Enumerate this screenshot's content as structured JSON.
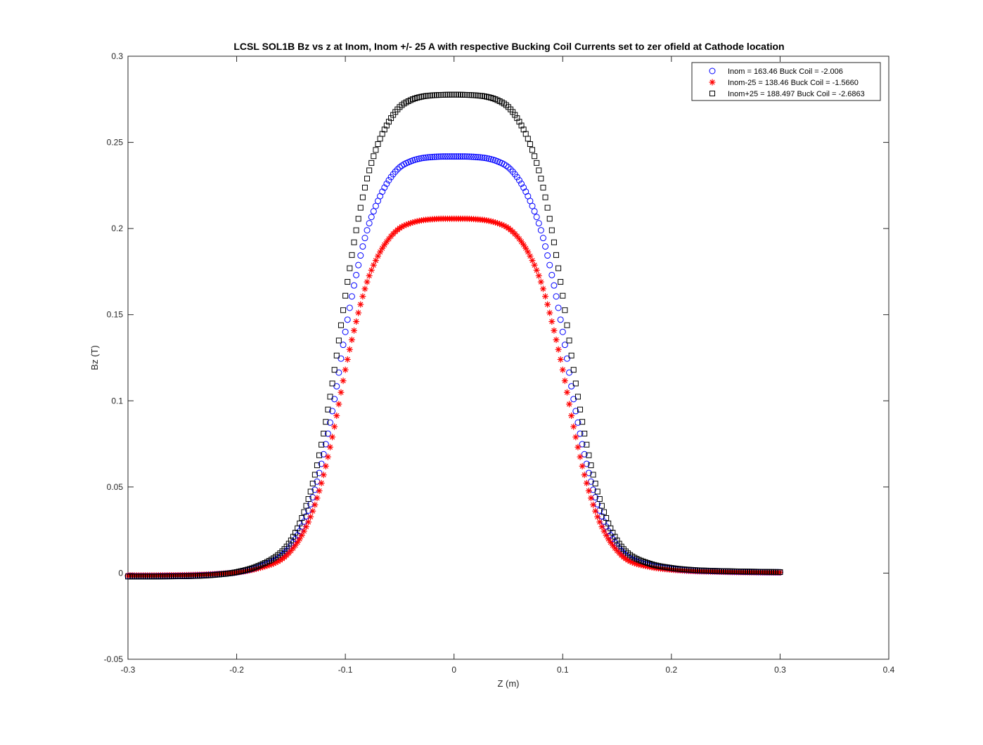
{
  "chart_data": {
    "type": "scatter",
    "title": "LCSL SOL1B Bz vs z at Inom, Inom +/- 25 A with respective Bucking Coil Currents set to zer ofield at Cathode location",
    "xlabel": "Z (m)",
    "ylabel": "Bz (T)",
    "xlim": [
      -0.3,
      0.4
    ],
    "ylim": [
      -0.05,
      0.3
    ],
    "x_ticks": [
      -0.3,
      -0.2,
      -0.1,
      0,
      0.1,
      0.2,
      0.3,
      0.4
    ],
    "x_tick_labels": [
      "-0.3",
      "-0.2",
      "-0.1",
      "0",
      "0.1",
      "0.2",
      "0.3",
      "0.4"
    ],
    "y_ticks": [
      -0.05,
      0,
      0.05,
      0.1,
      0.15,
      0.2,
      0.25,
      0.3
    ],
    "y_tick_labels": [
      "-0.05",
      "0",
      "0.05",
      "0.1",
      "0.15",
      "0.2",
      "0.25",
      "0.3"
    ],
    "grid": false,
    "legend_position": "top-right",
    "x": [
      -0.3,
      -0.28,
      -0.26,
      -0.24,
      -0.22,
      -0.2,
      -0.18,
      -0.16,
      -0.15,
      -0.14,
      -0.13,
      -0.12,
      -0.11,
      -0.1,
      -0.09,
      -0.08,
      -0.07,
      -0.06,
      -0.05,
      -0.04,
      -0.03,
      -0.02,
      -0.01,
      0,
      0.01,
      0.02,
      0.03,
      0.04,
      0.05,
      0.06,
      0.07,
      0.08,
      0.09,
      0.1,
      0.11,
      0.12,
      0.13,
      0.14,
      0.15,
      0.16,
      0.18,
      0.2,
      0.22,
      0.24,
      0.26,
      0.28,
      0.3
    ],
    "series": [
      {
        "name": "Inom = 163.46 Buck Coil = -2.006",
        "marker": "circle",
        "color": "#0000ff",
        "values": [
          -0.0017,
          -0.0017,
          -0.0016,
          -0.0014,
          -0.0008,
          0.0005,
          0.0035,
          0.0095,
          0.016,
          0.027,
          0.044,
          0.069,
          0.101,
          0.14,
          0.173,
          0.199,
          0.216,
          0.228,
          0.2355,
          0.239,
          0.2408,
          0.2415,
          0.2418,
          0.2418,
          0.2418,
          0.2415,
          0.2408,
          0.239,
          0.2355,
          0.228,
          0.216,
          0.199,
          0.173,
          0.14,
          0.101,
          0.069,
          0.044,
          0.027,
          0.016,
          0.0095,
          0.0045,
          0.0025,
          0.0015,
          0.0011,
          0.0008,
          0.0006,
          0.0005
        ]
      },
      {
        "name": "Inom-25 = 138.46 Buck Coil = -1.5660",
        "marker": "star",
        "color": "#ff0000",
        "values": [
          -0.0014,
          -0.0014,
          -0.0013,
          -0.0011,
          -0.0006,
          0.0004,
          0.0028,
          0.0075,
          0.013,
          0.022,
          0.036,
          0.057,
          0.085,
          0.118,
          0.146,
          0.169,
          0.184,
          0.194,
          0.2002,
          0.2031,
          0.2047,
          0.2054,
          0.2057,
          0.2057,
          0.2057,
          0.2054,
          0.2047,
          0.2031,
          0.2002,
          0.194,
          0.184,
          0.169,
          0.146,
          0.118,
          0.085,
          0.057,
          0.036,
          0.022,
          0.013,
          0.0075,
          0.0036,
          0.002,
          0.0012,
          0.0009,
          0.0006,
          0.0005,
          0.0004
        ]
      },
      {
        "name": "Inom+25 = 188.497 Buck Coil = -2.6863",
        "marker": "square",
        "color": "#000000",
        "values": [
          -0.002,
          -0.002,
          -0.0019,
          -0.0017,
          -0.001,
          0.0006,
          0.0042,
          0.0115,
          0.019,
          0.032,
          0.052,
          0.081,
          0.118,
          0.161,
          0.199,
          0.229,
          0.249,
          0.262,
          0.2705,
          0.2745,
          0.2765,
          0.2773,
          0.2776,
          0.2777,
          0.2776,
          0.2773,
          0.2765,
          0.2745,
          0.2705,
          0.262,
          0.249,
          0.229,
          0.199,
          0.161,
          0.118,
          0.081,
          0.052,
          0.032,
          0.019,
          0.0115,
          0.0055,
          0.003,
          0.0018,
          0.0013,
          0.001,
          0.0008,
          0.0006
        ]
      }
    ]
  }
}
